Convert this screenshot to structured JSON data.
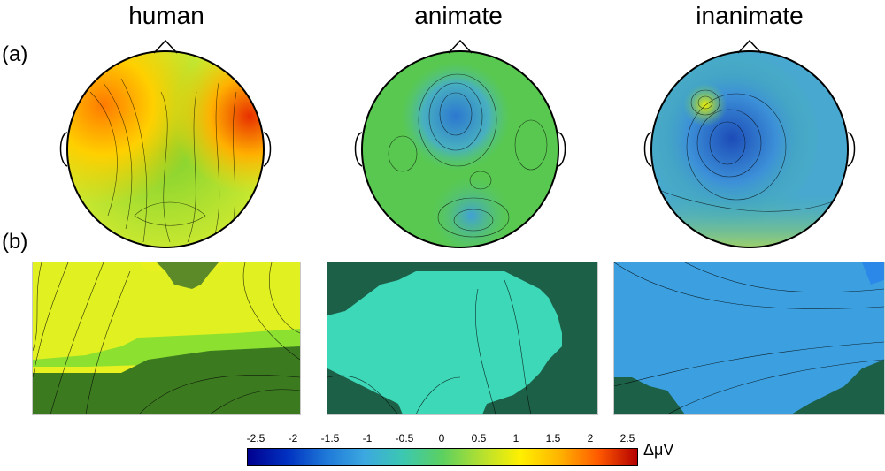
{
  "columns": [
    {
      "title": "human"
    },
    {
      "title": "animate"
    },
    {
      "title": "inanimate"
    }
  ],
  "row_labels": {
    "a": "(a)",
    "b": "(b)"
  },
  "colorbar": {
    "ticks": [
      "-2.5",
      "-2",
      "-1.5",
      "-1",
      "-0.5",
      "0",
      "0.5",
      "1",
      "1.5",
      "2",
      "2.5"
    ],
    "unit": "ΔμV",
    "range": [
      -2.5,
      2.5
    ]
  },
  "colors": {
    "human_base": "#a8d830",
    "animate_base": "#5cc850",
    "inanimate_base": "#4aa8d8"
  }
}
